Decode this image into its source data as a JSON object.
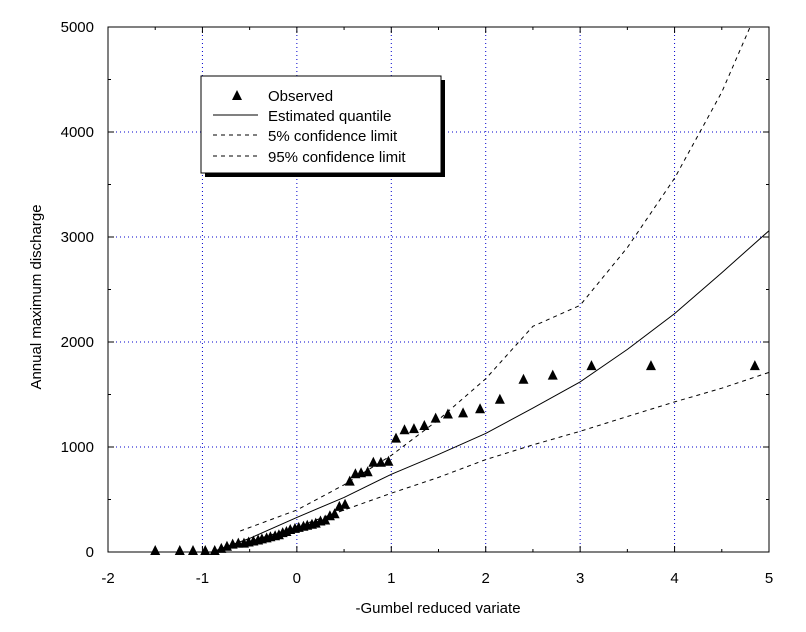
{
  "chart_data": {
    "type": "scatter",
    "xlabel": "-Gumbel reduced variate",
    "ylabel": "Annual maximum discharge",
    "xlim": [
      -2,
      5
    ],
    "ylim": [
      0,
      5000
    ],
    "xticks": [
      "-2",
      "-1",
      "0",
      "1",
      "2",
      "3",
      "4",
      "5"
    ],
    "yticks": [
      "0",
      "1000",
      "2000",
      "3000",
      "4000",
      "5000"
    ],
    "grid": true,
    "legend_position": "top-left",
    "series": [
      {
        "name": "Observed",
        "type": "scatter",
        "marker": "triangle",
        "x": [
          -1.5,
          -1.24,
          -1.1,
          -0.97,
          -0.87,
          -0.8,
          -0.74,
          -0.68,
          -0.62,
          -0.56,
          -0.51,
          -0.46,
          -0.41,
          -0.37,
          -0.32,
          -0.28,
          -0.23,
          -0.19,
          -0.15,
          -0.11,
          -0.07,
          -0.02,
          0.02,
          0.07,
          0.11,
          0.16,
          0.2,
          0.25,
          0.3,
          0.35,
          0.4,
          0.45,
          0.51,
          0.56,
          0.62,
          0.68,
          0.75,
          0.81,
          0.89,
          0.97,
          1.05,
          1.14,
          1.24,
          1.35,
          1.47,
          1.6,
          1.76,
          1.94,
          2.15,
          2.4,
          2.71,
          3.12,
          3.75,
          4.85
        ],
        "y": [
          10,
          10,
          10,
          10,
          10,
          30,
          50,
          70,
          80,
          80,
          90,
          100,
          110,
          120,
          130,
          140,
          150,
          160,
          180,
          190,
          210,
          220,
          230,
          240,
          250,
          260,
          270,
          290,
          300,
          340,
          360,
          430,
          450,
          670,
          740,
          750,
          760,
          850,
          850,
          860,
          1080,
          1160,
          1170,
          1200,
          1270,
          1310,
          1320,
          1360,
          1450,
          1640,
          1680,
          1770,
          1770,
          1770
        ]
      },
      {
        "name": "Estimated quantile",
        "type": "line",
        "style": "solid",
        "x": [
          -0.9,
          -0.5,
          0.0,
          0.5,
          1.0,
          1.5,
          2.0,
          2.5,
          3.0,
          3.5,
          4.0,
          4.5,
          5.0
        ],
        "y": [
          0,
          130,
          330,
          520,
          740,
          930,
          1130,
          1370,
          1620,
          1930,
          2270,
          2660,
          3060
        ]
      },
      {
        "name": "5% confidence limit",
        "type": "line",
        "style": "dashed",
        "x": [
          -0.6,
          0.0,
          0.5,
          1.0,
          1.5,
          2.0,
          2.5,
          3.0,
          3.5,
          4.0,
          4.5,
          5.0
        ],
        "y": [
          70,
          240,
          400,
          560,
          710,
          880,
          1020,
          1150,
          1290,
          1430,
          1560,
          1710
        ]
      },
      {
        "name": "95% confidence limit",
        "type": "line",
        "style": "dashed",
        "x": [
          -0.6,
          0.0,
          0.5,
          1.0,
          1.5,
          2.0,
          2.5,
          3.0,
          3.5,
          4.0,
          4.5,
          4.8
        ],
        "y": [
          200,
          400,
          640,
          920,
          1260,
          1650,
          2150,
          2350,
          2900,
          3560,
          4380,
          5000
        ]
      }
    ]
  }
}
